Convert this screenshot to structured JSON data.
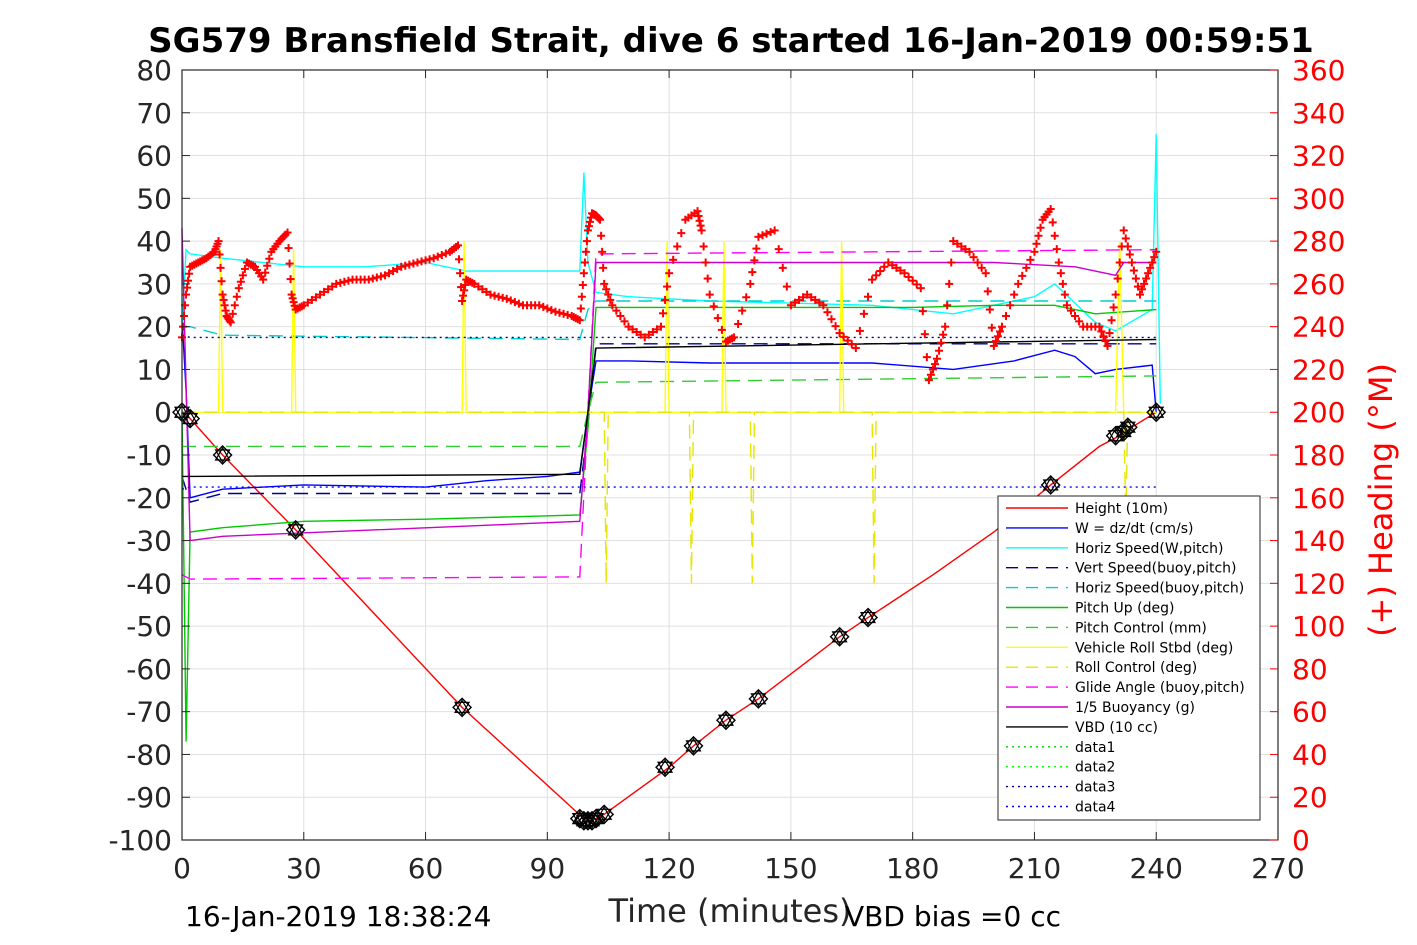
{
  "chart_data": {
    "type": "line",
    "title": "SG579 Bransfield Strait, dive 6 started 16-Jan-2019 00:59:51",
    "xlabel": "Time (minutes)",
    "ylabel": "",
    "ylabel_right": "(+) Heading (°M)",
    "xlim": [
      0,
      270
    ],
    "ylim": [
      -100,
      80
    ],
    "ylim_right": [
      0,
      360
    ],
    "xticks": [
      "0",
      "30",
      "60",
      "90",
      "120",
      "150",
      "180",
      "210",
      "240",
      "270"
    ],
    "yticks": [
      "80",
      "70",
      "60",
      "50",
      "40",
      "30",
      "20",
      "10",
      "0",
      "-10",
      "-20",
      "-30",
      "-40",
      "-50",
      "-60",
      "-70",
      "-80",
      "-90",
      "-100"
    ],
    "yticks_right": [
      "360",
      "340",
      "320",
      "300",
      "280",
      "260",
      "240",
      "220",
      "200",
      "180",
      "160",
      "140",
      "120",
      "100",
      "80",
      "60",
      "40",
      "20",
      "0"
    ],
    "grid": true,
    "legend_position": "lower-right",
    "footer_left": "16-Jan-2019 18:38:24",
    "footer_right": "VBD bias =0 cc",
    "series": [
      {
        "name": "Height (10m)",
        "color": "#ff0000",
        "style": "solid",
        "x": [
          0,
          2,
          10,
          28,
          69,
          99,
          101,
          104,
          120,
          126,
          134,
          142,
          162,
          169,
          185,
          200,
          214,
          226,
          232,
          234,
          240
        ],
        "y": [
          0,
          -1.5,
          -10,
          -27.5,
          -69,
          -95,
          -95.5,
          -94,
          -83,
          -78,
          -72,
          -67,
          -52.5,
          -48,
          -38,
          -28,
          -17,
          -8,
          -5,
          -3.5,
          0
        ]
      },
      {
        "name": "W = dz/dt (cm/s)",
        "color": "#0000ff",
        "style": "solid",
        "x": [
          0,
          1,
          2,
          10,
          30,
          60,
          75,
          90,
          98,
          100,
          102,
          110,
          130,
          150,
          170,
          190,
          205,
          215,
          220,
          225,
          230,
          239,
          240
        ],
        "y": [
          22,
          5,
          -20,
          -18,
          -17,
          -17.5,
          -16,
          -15,
          -14,
          0,
          12,
          12,
          11.5,
          11.5,
          11.5,
          10,
          12,
          14.5,
          13,
          9,
          10,
          11,
          0
        ]
      },
      {
        "name": "Horiz Speed(W,pitch)",
        "color": "#00ffff",
        "style": "solid",
        "x": [
          0,
          1,
          2,
          10,
          30,
          45,
          60,
          70,
          90,
          98,
          99,
          100,
          102,
          110,
          130,
          150,
          170,
          190,
          210,
          215,
          225,
          230,
          239,
          240,
          241
        ],
        "y": [
          20,
          38,
          37,
          36,
          34,
          34,
          35,
          33,
          33,
          33,
          56,
          35,
          28,
          27,
          26,
          25.5,
          25,
          23,
          27,
          30,
          21,
          19,
          24,
          65,
          2
        ]
      },
      {
        "name": "Vert Speed(buoy,pitch)",
        "color": "#00008b",
        "style": "dashed",
        "x": [
          0,
          2,
          10,
          98,
          100,
          102,
          240
        ],
        "y": [
          -15,
          -21,
          -19,
          -19,
          -3,
          16,
          16
        ]
      },
      {
        "name": "Horiz Speed(buoy,pitch)",
        "color": "#00ced1",
        "style": "dashed",
        "x": [
          0,
          2,
          10,
          98,
          100,
          102,
          240
        ],
        "y": [
          20,
          20,
          18,
          17,
          24,
          26,
          26
        ]
      },
      {
        "name": "Pitch Up (deg)",
        "color": "#00c800",
        "style": "solid",
        "x": [
          0,
          1,
          2,
          10,
          30,
          60,
          98,
          100,
          102,
          140,
          180,
          200,
          215,
          225,
          240
        ],
        "y": [
          0,
          -77,
          -28,
          -27,
          -25.5,
          -25,
          -24,
          -4,
          24.5,
          24.5,
          24.5,
          25,
          25,
          23,
          24
        ]
      },
      {
        "name": "Pitch Control (mm)",
        "color": "#32cd32",
        "style": "dashed",
        "x": [
          0,
          2,
          98,
          100,
          102,
          240
        ],
        "y": [
          -8,
          -8,
          -8,
          0,
          7,
          8.5
        ]
      },
      {
        "name": "Vehicle Roll Stbd (deg)",
        "color": "#ffff00",
        "style": "solid",
        "x": [
          0,
          2,
          9,
          9.5,
          10,
          27,
          27.5,
          28,
          69,
          69.5,
          70,
          98,
          100,
          119,
          119.5,
          120,
          133,
          133.5,
          134,
          162,
          162.5,
          163,
          213,
          214,
          215,
          230,
          231,
          232,
          240
        ],
        "y": [
          0,
          0,
          0,
          38,
          0,
          0,
          38,
          0,
          0,
          40,
          0,
          0,
          0,
          0,
          40,
          0,
          0,
          40,
          0,
          0,
          40,
          0,
          0,
          0,
          0,
          0,
          40,
          0,
          0
        ]
      },
      {
        "name": "Roll Control (deg)",
        "color": "#e6e600",
        "style": "dashed",
        "x": [
          0,
          98,
          99,
          100,
          104,
          104.5,
          105,
          125,
          125.5,
          126,
          140,
          140.5,
          141,
          170,
          170.5,
          171,
          232,
          232.5,
          233,
          240
        ],
        "y": [
          0,
          0,
          0,
          0,
          0,
          -40,
          0,
          0,
          -40,
          0,
          0,
          -40,
          0,
          0,
          -40,
          0,
          0,
          -25,
          0,
          0
        ]
      },
      {
        "name": "Glide Angle (buoy,pitch)",
        "color": "#ff00ff",
        "style": "dashed",
        "x": [
          0,
          2,
          98,
          100,
          102,
          240
        ],
        "y": [
          -38,
          -39,
          -38.5,
          0,
          37,
          38
        ]
      },
      {
        "name": "1/5 Buoyancy (g)",
        "color": "#cc00cc",
        "style": "solid",
        "x": [
          0,
          2,
          10,
          98,
          100,
          102,
          200,
          220,
          230,
          232,
          240
        ],
        "y": [
          43,
          -30,
          -29,
          -25.5,
          0,
          35,
          35,
          34,
          32,
          35,
          35
        ]
      },
      {
        "name": "VBD (10 cc)",
        "color": "#000000",
        "style": "solid",
        "x": [
          0,
          2,
          98,
          100,
          102,
          240
        ],
        "y": [
          -15,
          -15,
          -14.5,
          0,
          15,
          17
        ]
      },
      {
        "name": "data1",
        "color": "#00c800",
        "style": "dotted",
        "x": [],
        "y": []
      },
      {
        "name": "data2",
        "color": "#00ff00",
        "style": "dotted",
        "x": [],
        "y": []
      },
      {
        "name": "data3",
        "color": "#00008b",
        "style": "dotted",
        "x": [
          0,
          2,
          240
        ],
        "y": [
          18,
          17.5,
          17.5
        ]
      },
      {
        "name": "data4",
        "color": "#0000ff",
        "style": "dotted",
        "x": [
          0,
          2,
          240
        ],
        "y": [
          -18,
          -17.5,
          -17.5
        ]
      }
    ],
    "heading": {
      "name": "(+) Heading",
      "color": "#ff0000",
      "marker": "+",
      "axis": "right",
      "x": [
        0,
        1,
        2,
        4,
        6,
        8,
        9,
        10,
        11,
        12,
        14,
        16,
        18,
        20,
        22,
        24,
        26,
        27,
        28,
        30,
        34,
        38,
        42,
        46,
        50,
        54,
        58,
        62,
        66,
        68,
        69,
        70,
        72,
        76,
        80,
        84,
        88,
        92,
        96,
        98,
        99,
        100,
        101,
        102,
        103,
        104,
        106,
        110,
        114,
        118,
        120,
        124,
        127,
        128,
        130,
        134,
        136,
        140,
        142,
        146,
        150,
        154,
        158,
        162,
        166,
        170,
        174,
        178,
        182,
        184,
        186,
        188,
        190,
        194,
        198,
        200,
        202,
        206,
        210,
        212,
        214,
        216,
        218,
        222,
        226,
        228,
        230,
        232,
        234,
        236,
        238,
        240
      ],
      "y": [
        235,
        255,
        268,
        270,
        272,
        275,
        280,
        255,
        245,
        242,
        258,
        270,
        268,
        262,
        275,
        280,
        284,
        255,
        248,
        250,
        255,
        260,
        262,
        262,
        264,
        268,
        270,
        272,
        275,
        278,
        252,
        262,
        260,
        255,
        253,
        250,
        250,
        247,
        245,
        243,
        265,
        285,
        293,
        292,
        290,
        260,
        250,
        240,
        235,
        240,
        265,
        290,
        294,
        285,
        255,
        233,
        235,
        260,
        282,
        285,
        250,
        255,
        250,
        237,
        230,
        262,
        270,
        265,
        258,
        215,
        225,
        240,
        280,
        275,
        265,
        231,
        240,
        260,
        275,
        290,
        295,
        270,
        250,
        240,
        240,
        231,
        255,
        285,
        270,
        255,
        265,
        275
      ]
    },
    "markers": {
      "name": "samples",
      "color": "#000000",
      "x": [
        0,
        2,
        10,
        28,
        69,
        98,
        99,
        100,
        101,
        102,
        104,
        119,
        126,
        134,
        142,
        162,
        169,
        214,
        230,
        232,
        233,
        240
      ],
      "y": [
        0,
        -1.5,
        -10,
        -27.5,
        -69,
        -95,
        -95.5,
        -95.5,
        -95.5,
        -95,
        -94,
        -83,
        -78,
        -72,
        -67,
        -52.5,
        -48,
        -17,
        -5.5,
        -4.5,
        -3.5,
        0
      ]
    }
  }
}
